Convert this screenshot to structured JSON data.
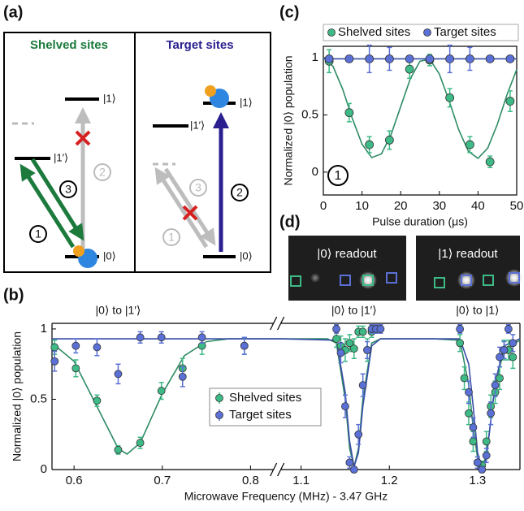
{
  "chart_data": [
    {
      "type": "scatter",
      "panel_label": "(b)",
      "xlabel": "Microwave Frequency (MHz) - 3.47 GHz",
      "ylabel": "Normalized |0⟩ population",
      "xlim": [
        0.575,
        1.348
      ],
      "xbreak": [
        0.826,
        1.077
      ],
      "xticks": [
        0.6,
        0.7,
        0.8,
        1.1,
        1.2,
        1.3
      ],
      "ylim": [
        0,
        1.04
      ],
      "yticks": [
        0,
        0.5,
        1
      ],
      "legend": "center",
      "annotations": [
        {
          "text": "|0⟩ to |1′⟩",
          "x": 0.65
        },
        {
          "text": "|0⟩ to |1′⟩",
          "x": 1.16
        },
        {
          "text": "|0⟩ to |1⟩",
          "x": 1.3
        }
      ],
      "series": [
        {
          "name": "Shelved sites",
          "color": "#3dba86",
          "x": [
            0.578,
            0.602,
            0.626,
            0.65,
            0.675,
            0.699,
            0.723,
            0.745,
            0.793,
            1.14,
            1.145,
            1.15,
            1.155,
            1.16,
            1.165,
            1.17,
            1.175,
            1.18,
            1.28,
            1.285,
            1.29,
            1.295,
            1.3,
            1.305,
            1.31,
            1.315,
            1.32,
            1.325,
            1.33,
            1.335,
            1.34
          ],
          "values": [
            0.87,
            0.72,
            0.49,
            0.14,
            0.19,
            0.56,
            0.72,
            0.88,
            0.88,
            0.93,
            0.88,
            0.85,
            0.9,
            0.86,
            0.98,
            0.98,
            0.85,
            0.98,
            0.9,
            0.65,
            0.4,
            0.2,
            0.05,
            0.03,
            0.2,
            0.45,
            0.55,
            0.65,
            0.85,
            0.85,
            0.8
          ],
          "errors": [
            0.05,
            0.06,
            0.04,
            0.03,
            0.04,
            0.06,
            0.07,
            0.06,
            0.06,
            0.06,
            0.07,
            0.08,
            0.06,
            0.07,
            0.04,
            0.04,
            0.08,
            0.04,
            0.06,
            0.08,
            0.08,
            0.07,
            0.04,
            0.03,
            0.07,
            0.08,
            0.08,
            0.08,
            0.07,
            0.07,
            0.08
          ]
        },
        {
          "name": "Target sites",
          "color": "#5a70d6",
          "x": [
            0.578,
            0.602,
            0.626,
            0.65,
            0.675,
            0.699,
            0.723,
            0.745,
            0.793,
            1.14,
            1.145,
            1.15,
            1.155,
            1.16,
            1.165,
            1.17,
            1.175,
            1.18,
            1.185,
            1.19,
            1.28,
            1.29,
            1.295,
            1.3,
            1.305,
            1.31,
            1.315,
            1.32,
            1.325,
            1.33,
            1.335,
            1.34
          ],
          "values": [
            0.77,
            0.88,
            0.87,
            0.68,
            0.94,
            0.94,
            0.66,
            0.94,
            0.88,
            1.0,
            0.83,
            0.45,
            0.05,
            0.0,
            0.25,
            0.6,
            0.85,
            1.0,
            1.0,
            1.0,
            1.0,
            0.55,
            0.3,
            0.05,
            0.0,
            0.1,
            0.4,
            0.6,
            0.8,
            0.85,
            1.0,
            0.9
          ],
          "errors": [
            0.07,
            0.05,
            0.06,
            0.07,
            0.04,
            0.04,
            0.07,
            0.04,
            0.06,
            0.03,
            0.07,
            0.08,
            0.04,
            0.02,
            0.07,
            0.08,
            0.06,
            0.03,
            0.03,
            0.03,
            0.03,
            0.08,
            0.07,
            0.04,
            0.02,
            0.05,
            0.08,
            0.08,
            0.07,
            0.06,
            0.03,
            0.06
          ]
        },
        {
          "color": "#2e8b64",
          "style": "line",
          "x": [
            0.575,
            0.6,
            0.625,
            0.65,
            0.66,
            0.675,
            0.7,
            0.725,
            0.75,
            0.775,
            0.8,
            0.826,
            1.077,
            1.1,
            1.13,
            1.14,
            1.15,
            1.155,
            1.16,
            1.165,
            1.17,
            1.18,
            1.19,
            1.25,
            1.28,
            1.29,
            1.295,
            1.3,
            1.305,
            1.31,
            1.315,
            1.32,
            1.33,
            1.348
          ],
          "values": [
            0.9,
            0.77,
            0.46,
            0.15,
            0.11,
            0.19,
            0.54,
            0.81,
            0.91,
            0.93,
            0.93,
            0.93,
            0.93,
            0.93,
            0.93,
            0.9,
            0.5,
            0.15,
            0.02,
            0.15,
            0.5,
            0.9,
            0.93,
            0.93,
            0.92,
            0.6,
            0.3,
            0.08,
            0.02,
            0.1,
            0.35,
            0.6,
            0.85,
            0.92
          ]
        },
        {
          "color": "#3a4ea8",
          "style": "line",
          "x": [
            0.575,
            0.826,
            1.077,
            1.14,
            1.15,
            1.155,
            1.16,
            1.165,
            1.17,
            1.18,
            1.19,
            1.28,
            1.29,
            1.295,
            1.3,
            1.305,
            1.31,
            1.315,
            1.32,
            1.33,
            1.348
          ],
          "values": [
            0.93,
            0.93,
            0.93,
            0.92,
            0.55,
            0.2,
            0.02,
            0.12,
            0.45,
            0.88,
            0.93,
            0.93,
            0.75,
            0.45,
            0.12,
            0.0,
            0.08,
            0.35,
            0.62,
            0.88,
            0.93
          ]
        }
      ]
    },
    {
      "type": "scatter",
      "panel_label": "(c)",
      "xlabel": "Pulse duration (μs)",
      "ylabel": "Normalized |0⟩ population",
      "xlim": [
        0,
        50
      ],
      "xticks": [
        0,
        10,
        20,
        30,
        40,
        50
      ],
      "ylim": [
        -0.2,
        1.1
      ],
      "yticks": [
        0,
        0.5,
        1
      ],
      "legend": "top",
      "annotation": "1",
      "series": [
        {
          "name": "Shelved sites",
          "color": "#3dba86",
          "x": [
            1.5,
            6.7,
            11.9,
            17.1,
            22.3,
            27.5,
            32.7,
            37.9,
            43.1,
            48.3
          ],
          "values": [
            0.97,
            0.52,
            0.24,
            0.28,
            0.9,
            0.98,
            0.65,
            0.24,
            0.09,
            0.62
          ],
          "errors": [
            0.1,
            0.08,
            0.07,
            0.08,
            0.08,
            0.05,
            0.08,
            0.07,
            0.05,
            0.09
          ]
        },
        {
          "name": "Target sites",
          "color": "#5a70d6",
          "x": [
            1.5,
            6.7,
            11.9,
            17.1,
            22.3,
            27.5,
            32.7,
            37.9,
            43.1,
            48.3
          ],
          "values": [
            0.99,
            0.99,
            0.99,
            0.99,
            0.99,
            0.99,
            0.99,
            0.99,
            0.99,
            0.99
          ],
          "errors": [
            0.02,
            0.02,
            0.12,
            0.1,
            0.02,
            0.02,
            0.12,
            0.1,
            0.02,
            0.02
          ]
        },
        {
          "color": "#2e8b64",
          "style": "line",
          "x": [
            0,
            2.5,
            5,
            7.5,
            10,
            12.5,
            15,
            17.5,
            20,
            22.5,
            25,
            27.5,
            30,
            32.5,
            35,
            37.5,
            40,
            42.5,
            45,
            47.5,
            50
          ],
          "values": [
            1.0,
            0.925,
            0.725,
            0.469,
            0.245,
            0.127,
            0.159,
            0.326,
            0.573,
            0.817,
            0.97,
            0.988,
            0.858,
            0.626,
            0.371,
            0.182,
            0.12,
            0.209,
            0.418,
            0.677,
            0.897
          ]
        },
        {
          "color": "#3a4ea8",
          "style": "line",
          "x": [
            0,
            50
          ],
          "values": [
            0.99,
            0.99
          ]
        }
      ]
    }
  ],
  "diagram": {
    "panel_label": "(a)",
    "left_title": "Shelved sites",
    "right_title": "Target sites",
    "left_levels": [
      "|1⟩",
      "|1′⟩",
      "|0⟩"
    ],
    "right_levels": [
      "|1⟩",
      "|1′⟩",
      "|0⟩"
    ],
    "left_steps": [
      "1",
      "2",
      "3"
    ],
    "right_steps": [
      "1",
      "2",
      "3"
    ]
  },
  "images": {
    "panel_label": "(d)",
    "labels": [
      "|0⟩ readout",
      "|1⟩ readout"
    ]
  }
}
